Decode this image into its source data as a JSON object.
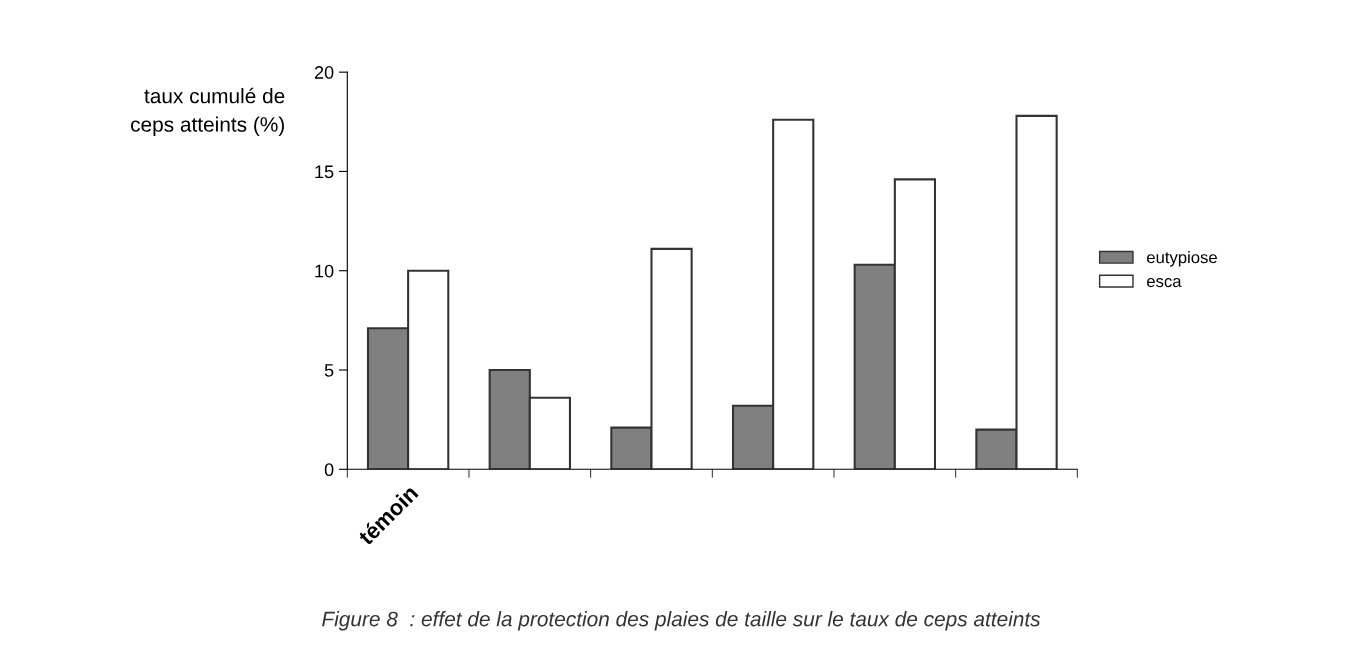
{
  "chart_data": {
    "type": "bar",
    "ylabel": "taux cumulé de\nceps atteints (%)",
    "categories": [
      "témoin",
      null,
      null,
      null,
      null,
      null
    ],
    "series": [
      {
        "name": "eutypiose",
        "color": "#808080",
        "values": [
          7.1,
          5.0,
          2.1,
          3.2,
          10.3,
          2.0
        ]
      },
      {
        "name": "esca",
        "color": "#ffffff",
        "values": [
          10.0,
          3.6,
          11.1,
          17.6,
          14.6,
          17.8
        ]
      }
    ],
    "ylim": [
      0,
      20
    ],
    "yticks": [
      0,
      5,
      10,
      15,
      20
    ],
    "grid": false,
    "legend": "right",
    "annotations": [
      "Figure 8  : effet de la protection des plaies de taille sur le taux de ceps atteints"
    ]
  }
}
